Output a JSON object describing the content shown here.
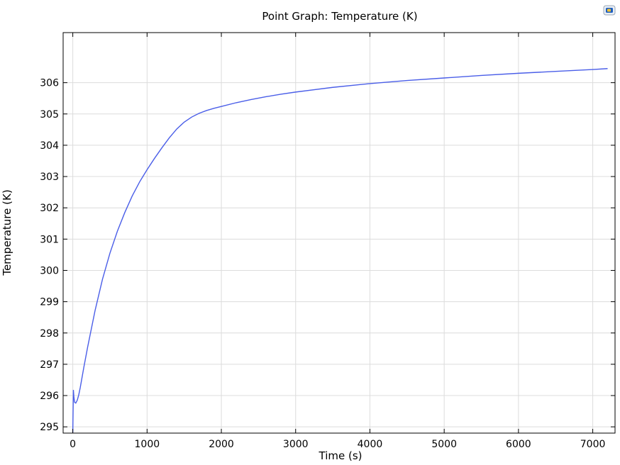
{
  "chart_data": {
    "type": "line",
    "title": "Point Graph: Temperature (K)",
    "xlabel": "Time (s)",
    "ylabel": "Temperature (K)",
    "xlim": [
      -130,
      7300
    ],
    "ylim": [
      294.8,
      307.6
    ],
    "xticks": [
      0,
      1000,
      2000,
      3000,
      4000,
      5000,
      6000,
      7000
    ],
    "yticks": [
      295,
      296,
      297,
      298,
      299,
      300,
      301,
      302,
      303,
      304,
      305,
      306
    ],
    "grid": true,
    "series": [
      {
        "color": "#4a5ee8",
        "x": [
          0,
          8,
          15,
          25,
          40,
          60,
          80,
          100,
          150,
          200,
          300,
          400,
          500,
          600,
          700,
          800,
          900,
          1000,
          1100,
          1200,
          1300,
          1400,
          1500,
          1600,
          1700,
          1800,
          1900,
          2000,
          2200,
          2400,
          2600,
          2800,
          3000,
          3500,
          4000,
          4500,
          5000,
          5500,
          6000,
          6500,
          7000,
          7200
        ],
        "y": [
          294.82,
          296.18,
          295.95,
          295.78,
          295.76,
          295.85,
          296.02,
          296.25,
          296.92,
          297.55,
          298.72,
          299.72,
          300.55,
          301.25,
          301.85,
          302.38,
          302.83,
          303.22,
          303.58,
          303.92,
          304.24,
          304.52,
          304.74,
          304.9,
          305.02,
          305.11,
          305.18,
          305.24,
          305.36,
          305.46,
          305.55,
          305.63,
          305.7,
          305.85,
          305.97,
          306.07,
          306.15,
          306.23,
          306.3,
          306.36,
          306.42,
          306.45
        ]
      }
    ]
  },
  "toolbar": {
    "logo_icon": "comsol-logo-icon"
  }
}
